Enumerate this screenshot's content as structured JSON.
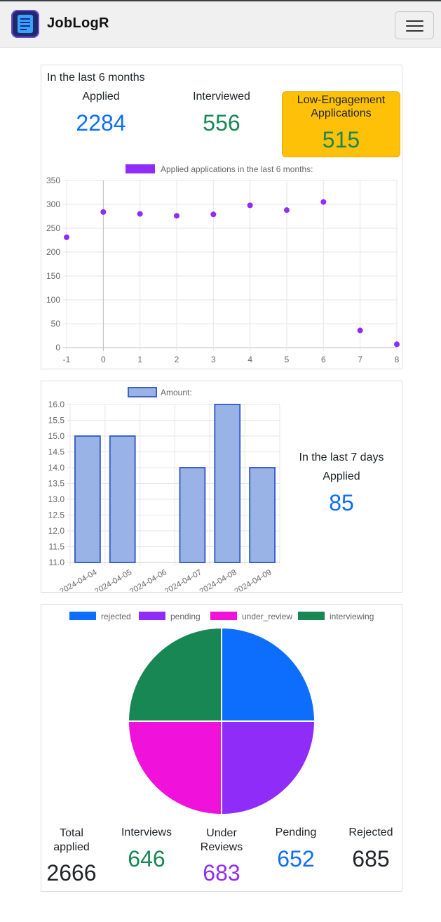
{
  "app": {
    "brand": "JobLogR"
  },
  "colors": {
    "blue": "#0d6efd",
    "green": "#198754",
    "purple": "#8f2cf7",
    "magenta": "#f011da",
    "amber": "#ffc107",
    "bar_fill": "#99b3e6",
    "bar_border": "#3d63c9"
  },
  "six_months": {
    "heading": "In the last 6 months",
    "applied_label": "Applied",
    "applied_value": "2284",
    "interviewed_label": "Interviewed",
    "interviewed_value": "556",
    "low_label": "Low-Engagement Applications",
    "low_value": "515"
  },
  "seven_days": {
    "heading": "In the last 7 days",
    "applied_label": "Applied",
    "applied_value": "85"
  },
  "totals": {
    "total_label": "Total applied",
    "total_value": "2666",
    "interviews_label": "Interviews",
    "interviews_value": "646",
    "under_label": "Under Reviews",
    "under_value": "683",
    "pending_label": "Pending",
    "pending_value": "652",
    "rejected_label": "Rejected",
    "rejected_value": "685"
  },
  "chart_data": [
    {
      "type": "scatter",
      "series": [
        {
          "name": "Applied applications in the last 6 months:",
          "color": "#8f2cf7",
          "points": [
            [
              -1,
              231
            ],
            [
              0,
              284
            ],
            [
              1,
              280
            ],
            [
              2,
              276
            ],
            [
              3,
              279
            ],
            [
              4,
              298
            ],
            [
              5,
              288
            ],
            [
              6,
              305
            ],
            [
              7,
              36
            ],
            [
              8,
              7
            ]
          ]
        }
      ],
      "xlim": [
        -1,
        8
      ],
      "ylim": [
        0,
        350
      ],
      "xticks": [
        "-1",
        "0",
        "1",
        "2",
        "3",
        "4",
        "5",
        "6",
        "7",
        "8"
      ],
      "yticks": [
        "0",
        "50",
        "100",
        "150",
        "200",
        "250",
        "300",
        "350"
      ],
      "grid": true,
      "legend_position": "top"
    },
    {
      "type": "bar",
      "categories": [
        "2024-04-04",
        "2024-04-05",
        "2024-04-06",
        "2024-04-07",
        "2024-04-08",
        "2024-04-09"
      ],
      "series": [
        {
          "name": "Amount:",
          "values": [
            15,
            15,
            null,
            14,
            16,
            14
          ]
        }
      ],
      "ylim": [
        11,
        16
      ],
      "yticks": [
        "11.0",
        "11.5",
        "12.0",
        "12.5",
        "13.0",
        "13.5",
        "14.0",
        "14.5",
        "15.0",
        "15.5",
        "16.0"
      ],
      "grid": true,
      "legend_position": "top"
    },
    {
      "type": "pie",
      "slices": [
        {
          "label": "rejected",
          "value": 25,
          "color": "#0d6efd"
        },
        {
          "label": "pending",
          "value": 25,
          "color": "#8f2cf7"
        },
        {
          "label": "under_review",
          "value": 25,
          "color": "#f011da"
        },
        {
          "label": "interviewing",
          "value": 25,
          "color": "#198754"
        }
      ],
      "legend_position": "top"
    }
  ]
}
